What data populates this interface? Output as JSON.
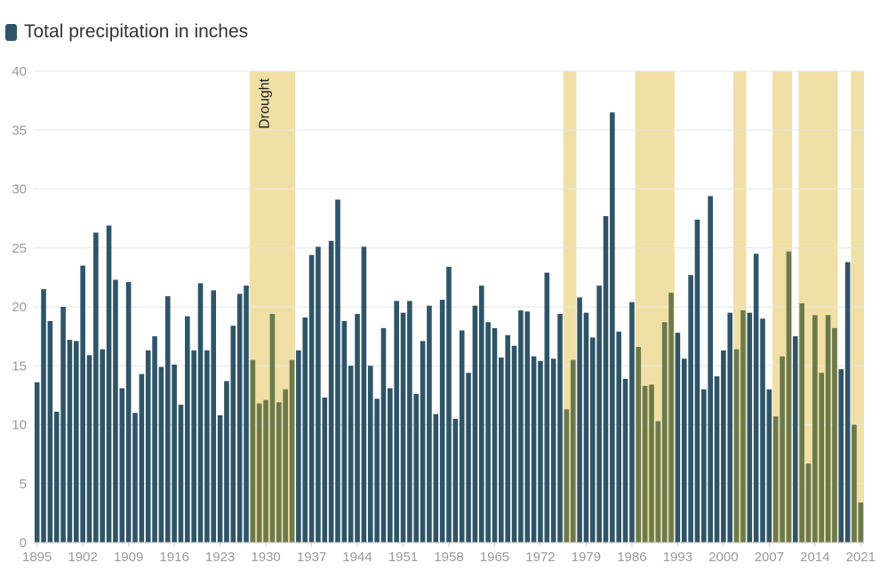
{
  "chart_data": {
    "type": "bar",
    "legend": {
      "label": "Total precipitation in inches",
      "placement": "top-left"
    },
    "colors": {
      "bar": "#2e5468",
      "drought_band": "#f1e0a6",
      "bar_in_drought": "#6b7a4c",
      "grid": "#e6e6e6"
    },
    "ylim": [
      0,
      40
    ],
    "yticks": [
      0,
      5,
      10,
      15,
      20,
      25,
      30,
      35,
      40
    ],
    "xlim": [
      1895,
      2021
    ],
    "xticks": [
      1895,
      1902,
      1909,
      1916,
      1923,
      1930,
      1937,
      1944,
      1951,
      1958,
      1965,
      1972,
      1979,
      1986,
      1993,
      2000,
      2007,
      2014,
      2021
    ],
    "x": [
      1895,
      1896,
      1897,
      1898,
      1899,
      1900,
      1901,
      1902,
      1903,
      1904,
      1905,
      1906,
      1907,
      1908,
      1909,
      1910,
      1911,
      1912,
      1913,
      1914,
      1915,
      1916,
      1917,
      1918,
      1919,
      1920,
      1921,
      1922,
      1923,
      1924,
      1925,
      1926,
      1927,
      1928,
      1929,
      1930,
      1931,
      1932,
      1933,
      1934,
      1935,
      1936,
      1937,
      1938,
      1939,
      1940,
      1941,
      1942,
      1943,
      1944,
      1945,
      1946,
      1947,
      1948,
      1949,
      1950,
      1951,
      1952,
      1953,
      1954,
      1955,
      1956,
      1957,
      1958,
      1959,
      1960,
      1961,
      1962,
      1963,
      1964,
      1965,
      1966,
      1967,
      1968,
      1969,
      1970,
      1971,
      1972,
      1973,
      1974,
      1975,
      1976,
      1977,
      1978,
      1979,
      1980,
      1981,
      1982,
      1983,
      1984,
      1985,
      1986,
      1987,
      1988,
      1989,
      1990,
      1991,
      1992,
      1993,
      1994,
      1995,
      1996,
      1997,
      1998,
      1999,
      2000,
      2001,
      2002,
      2003,
      2004,
      2005,
      2006,
      2007,
      2008,
      2009,
      2010,
      2011,
      2012,
      2013,
      2014,
      2015,
      2016,
      2017,
      2018,
      2019,
      2020,
      2021
    ],
    "values": [
      13.6,
      21.5,
      18.8,
      11.1,
      20.0,
      17.2,
      17.1,
      23.5,
      15.9,
      26.3,
      16.4,
      26.9,
      22.3,
      13.1,
      22.1,
      11.0,
      14.3,
      16.3,
      17.5,
      14.9,
      20.9,
      15.1,
      11.7,
      19.2,
      16.3,
      22.0,
      16.3,
      21.4,
      10.8,
      13.7,
      18.4,
      21.1,
      21.8,
      15.5,
      11.8,
      12.1,
      19.4,
      11.9,
      13.0,
      15.5,
      16.3,
      19.1,
      24.4,
      25.1,
      12.3,
      25.6,
      29.1,
      18.8,
      15.0,
      19.4,
      25.1,
      15.0,
      12.2,
      18.2,
      13.1,
      20.5,
      19.5,
      20.5,
      12.6,
      17.1,
      20.1,
      10.9,
      20.6,
      23.4,
      10.5,
      18.0,
      14.4,
      20.1,
      21.8,
      18.7,
      18.2,
      15.7,
      17.6,
      16.7,
      19.7,
      19.6,
      15.8,
      15.4,
      22.9,
      15.6,
      19.4,
      11.3,
      15.5,
      20.8,
      19.5,
      17.4,
      21.8,
      27.7,
      36.5,
      17.9,
      13.9,
      20.4,
      16.6,
      13.3,
      13.4,
      10.3,
      18.7,
      21.2,
      17.8,
      15.6,
      22.7,
      27.4,
      13.0,
      29.4,
      14.1,
      16.3,
      19.5,
      16.4,
      19.7,
      19.5,
      24.5,
      19.0,
      13.0,
      10.7,
      15.8,
      24.7,
      17.5,
      20.3,
      6.7,
      19.3,
      14.4,
      19.3,
      18.2,
      14.7,
      23.8,
      10.0,
      3.4
    ],
    "shaded_regions": [
      {
        "start": 1928,
        "end": 1934,
        "label": "Drought"
      },
      {
        "start": 1976,
        "end": 1977,
        "label": ""
      },
      {
        "start": 1987,
        "end": 1992,
        "label": ""
      },
      {
        "start": 2002,
        "end": 2003,
        "label": ""
      },
      {
        "start": 2008,
        "end": 2010,
        "label": ""
      },
      {
        "start": 2012,
        "end": 2017,
        "label": ""
      },
      {
        "start": 2020,
        "end": 2021,
        "label": ""
      }
    ],
    "grid": true
  }
}
